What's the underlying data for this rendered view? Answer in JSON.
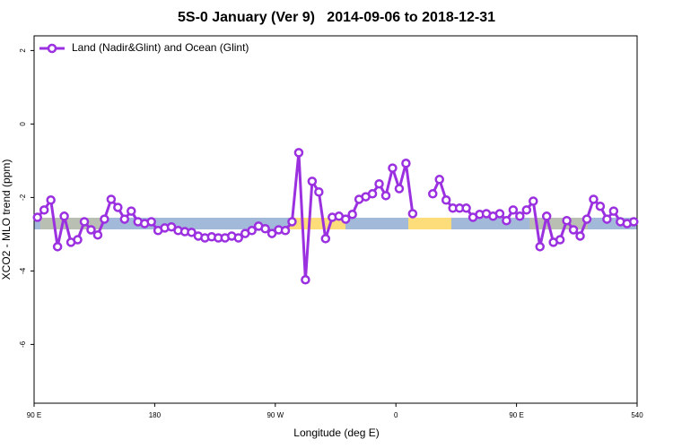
{
  "chart_data": {
    "type": "line",
    "title": "5S-0 January (Ver 9)   2014-09-06 to 2018-12-31",
    "x_label": "Longitude (deg E)",
    "y_label": "XCO2 - MLO trend (ppm)",
    "x": [
      92.5,
      97.5,
      102.5,
      107.5,
      112.5,
      117.5,
      122.5,
      127.5,
      132.5,
      137.5,
      142.5,
      147.5,
      152.5,
      157.5,
      162.5,
      167.5,
      172.5,
      177.5,
      182.5,
      187.5,
      192.5,
      197.5,
      202.5,
      207.5,
      212.5,
      217.5,
      222.5,
      227.5,
      232.5,
      237.5,
      242.5,
      247.5,
      252.5,
      257.5,
      262.5,
      267.5,
      272.5,
      277.5,
      282.5,
      287.5,
      292.5,
      297.5,
      302.5,
      307.5,
      312.5,
      317.5,
      322.5,
      327.5,
      332.5,
      337.5,
      342.5,
      347.5,
      352.5,
      357.5,
      362.5,
      367.5,
      372.5,
      377.5,
      382.5,
      387.5,
      392.5,
      397.5,
      402.5,
      407.5,
      412.5,
      417.5,
      422.5,
      427.5,
      432.5,
      437.5,
      442.5,
      447.5,
      452.5,
      457.5,
      462.5,
      467.5,
      472.5,
      477.5,
      482.5,
      487.5,
      492.5,
      497.5,
      502.5,
      507.5,
      512.5,
      517.5,
      522.5,
      527.5,
      532.5,
      537.5
    ],
    "series": [
      {
        "name": "Land (Nadir&Glint) and Ocean (Glint)",
        "color": "#9b30e0",
        "values": [
          -2.54,
          -2.34,
          -2.07,
          -3.34,
          -2.51,
          -3.22,
          -3.15,
          -2.66,
          -2.88,
          -3.02,
          -2.59,
          -2.05,
          -2.27,
          -2.59,
          -2.37,
          -2.66,
          -2.71,
          -2.66,
          -2.9,
          -2.83,
          -2.8,
          -2.9,
          -2.93,
          -2.95,
          -3.05,
          -3.1,
          -3.07,
          -3.1,
          -3.1,
          -3.05,
          -3.1,
          -2.98,
          -2.9,
          -2.78,
          -2.85,
          -2.98,
          -2.88,
          -2.9,
          -2.66,
          -0.78,
          -4.24,
          -1.56,
          -1.85,
          -3.12,
          -2.54,
          -2.51,
          -2.59,
          -2.46,
          -2.05,
          -1.98,
          -1.9,
          -1.63,
          -1.95,
          -1.2,
          -1.76,
          -1.07,
          -2.44,
          null,
          null,
          -1.9,
          -1.51,
          -2.07,
          -2.29,
          -2.29,
          -2.29,
          -2.54,
          -2.46,
          -2.44,
          -2.51,
          -2.44,
          -2.63,
          -2.34,
          -2.51,
          -2.34,
          -2.1,
          -3.34,
          -2.51,
          -3.22,
          -3.15,
          -2.63,
          -2.88,
          -3.05,
          -2.59,
          -2.05,
          -2.24,
          -2.59,
          -2.37,
          -2.66,
          -2.71,
          -2.66
        ]
      }
    ],
    "xlim": [
      90,
      540
    ],
    "xticks": [
      {
        "value": 90,
        "label": "90 E"
      },
      180,
      {
        "value": 270,
        "label": "90 W"
      },
      {
        "value": 360,
        "label": "0"
      },
      {
        "value": 450,
        "label": "90 E"
      },
      540
    ],
    "ylim": [
      -7.6,
      2.4
    ],
    "yticks": [
      2,
      0,
      -2,
      -4,
      -6
    ],
    "legend": "top-left"
  }
}
